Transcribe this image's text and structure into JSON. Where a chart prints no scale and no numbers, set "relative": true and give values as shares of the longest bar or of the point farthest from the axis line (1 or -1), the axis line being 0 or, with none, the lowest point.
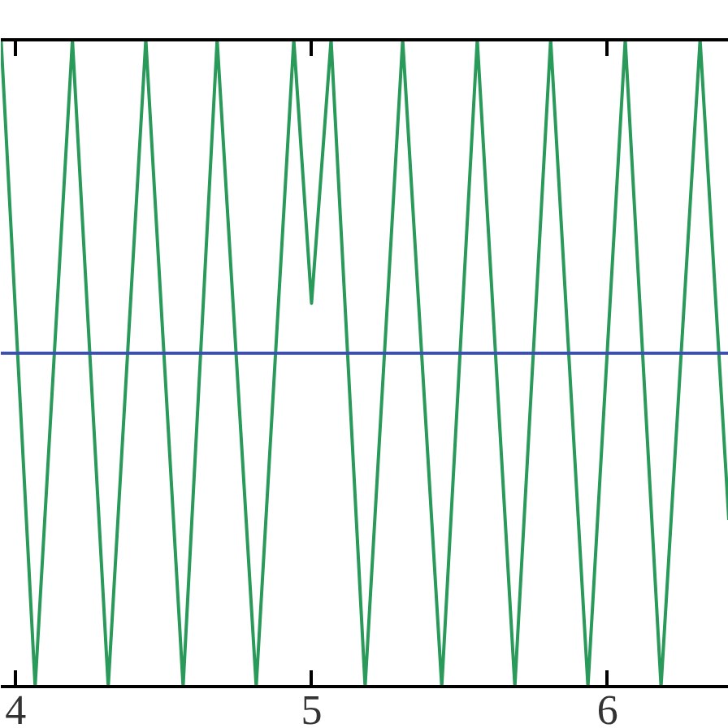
{
  "chart_data": {
    "type": "line",
    "relative": true,
    "xlim": [
      3.95,
      6.41
    ],
    "xticks": [
      4,
      5,
      6
    ],
    "grid": false,
    "line_style": "solid",
    "series": [
      {
        "color": "#2a9a5a",
        "x": [
          3.951,
          4.066,
          4.192,
          4.313,
          4.44,
          4.566,
          4.681,
          4.813,
          4.94,
          5.0,
          5.066,
          5.181,
          5.308,
          5.44,
          5.56,
          5.687,
          5.808,
          5.934,
          6.06,
          6.181,
          6.313,
          6.41
        ],
        "values": [
          0.94,
          -1,
          0.94,
          -1,
          0.94,
          -1,
          0.94,
          -1,
          0.94,
          0.15,
          0.94,
          -1,
          0.94,
          -1,
          0.94,
          -1,
          0.94,
          -1,
          0.94,
          -1,
          0.94,
          -0.5
        ]
      },
      {
        "color": "#3a4fb0",
        "x": [
          3.95,
          6.41
        ],
        "values": [
          0,
          0
        ]
      }
    ]
  }
}
